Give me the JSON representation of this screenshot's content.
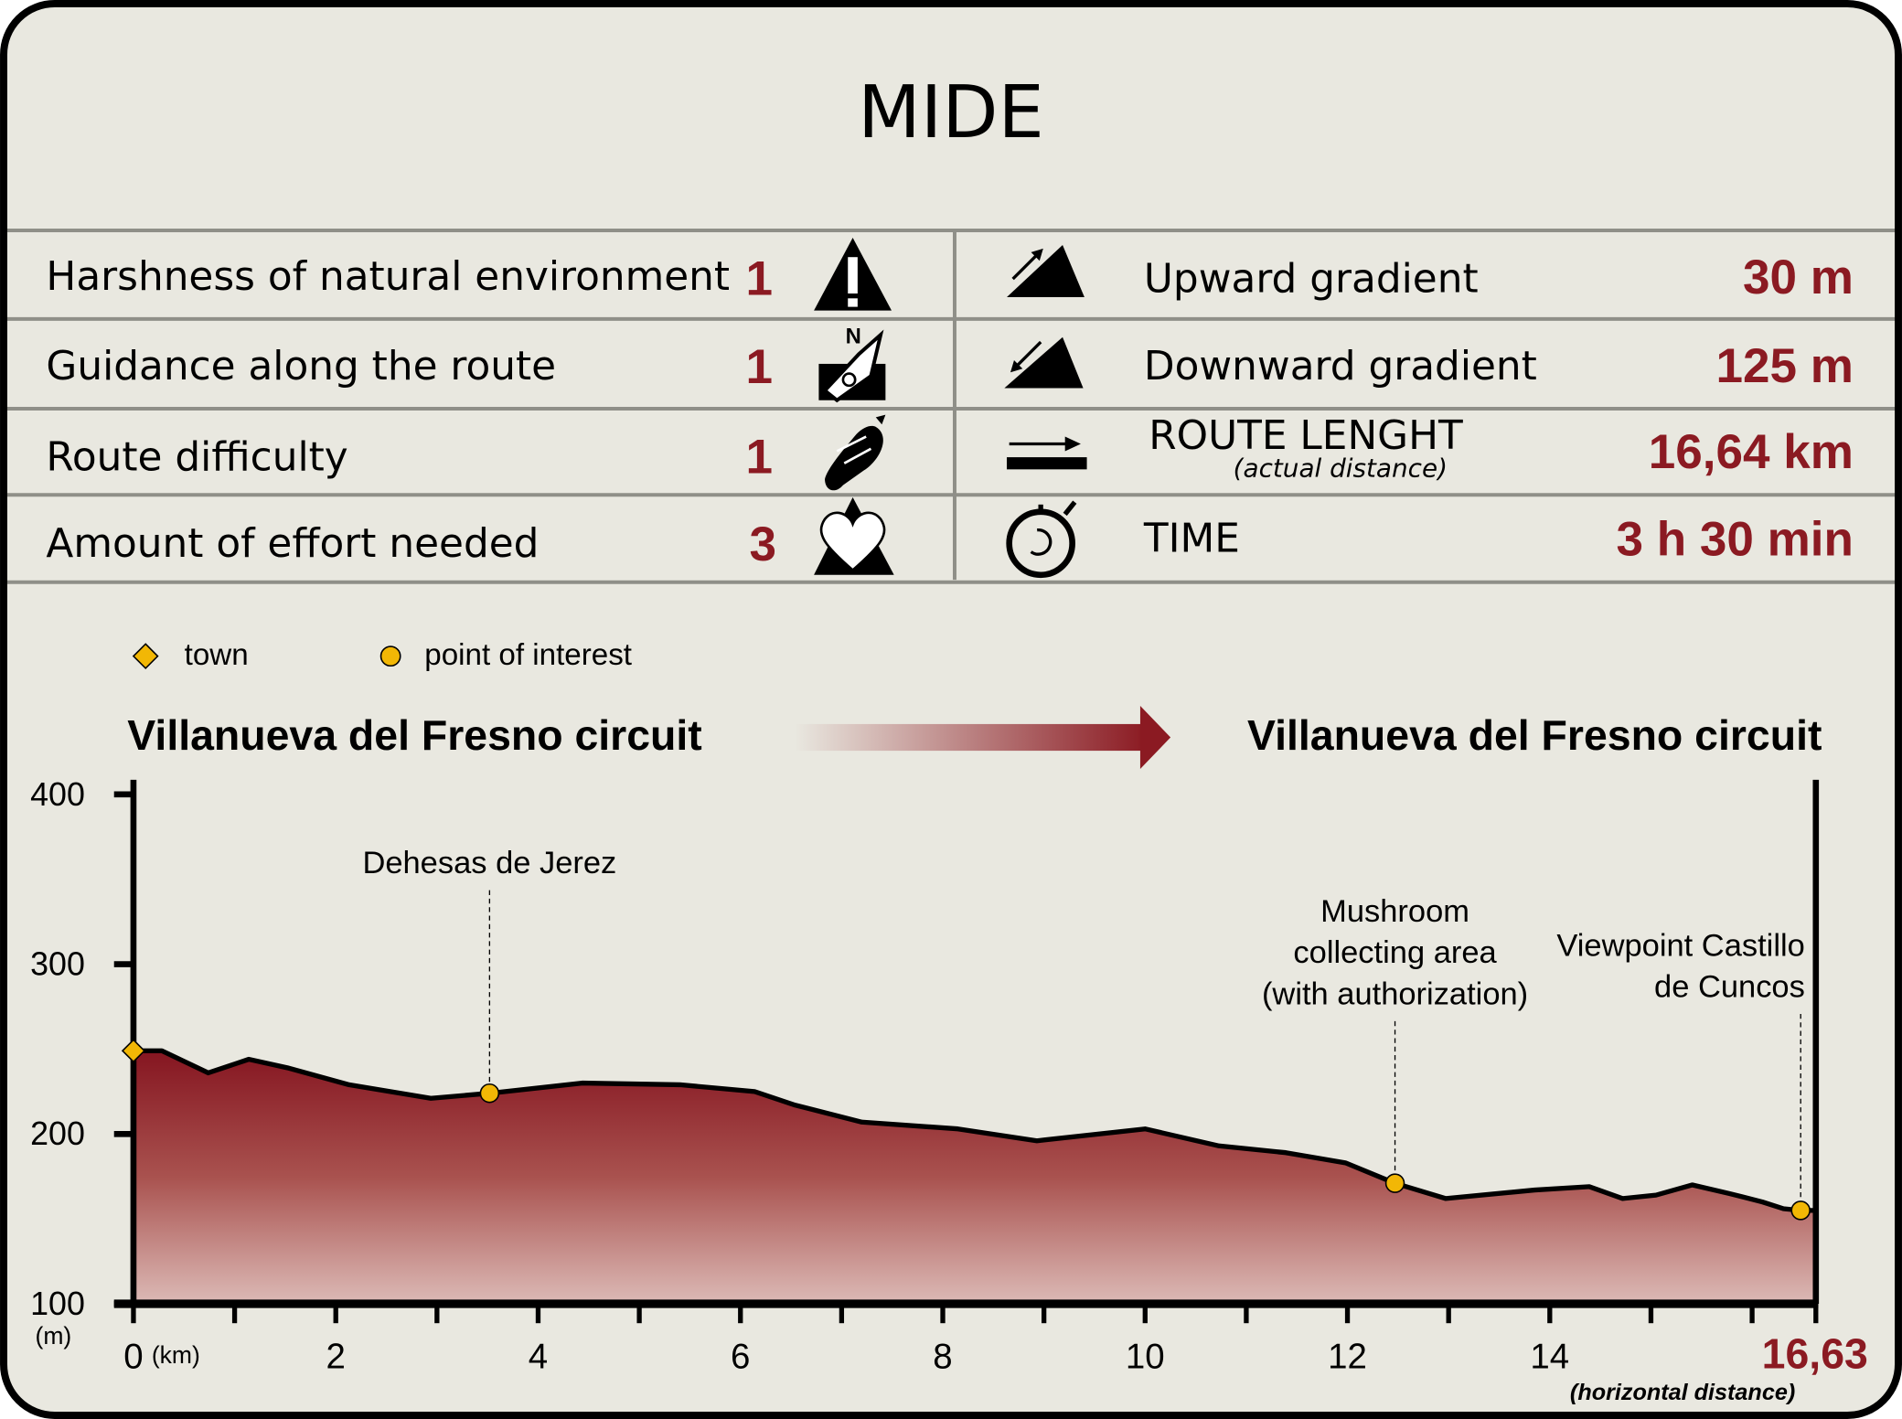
{
  "title": "MIDE",
  "mide_rows": [
    {
      "label": "Harshness of natural environment",
      "value": "1",
      "icon": "warning-mountain-icon"
    },
    {
      "label": "Guidance along the route",
      "value": "1",
      "icon": "compass-map-icon"
    },
    {
      "label": "Route difficulty",
      "value": "1",
      "icon": "footprint-icon"
    },
    {
      "label": "Amount of effort needed",
      "value": "3",
      "icon": "heart-mountain-icon"
    }
  ],
  "stats_rows": [
    {
      "label": "Upward gradient",
      "value": "30 m",
      "icon": "upward-gradient-icon"
    },
    {
      "label": "Downward gradient",
      "value": "125 m",
      "icon": "downward-gradient-icon"
    },
    {
      "label": "ROUTE LENGHT",
      "sublabel": "(actual distance)",
      "value": "16,64 km",
      "icon": "distance-arrow-icon"
    },
    {
      "label": "TIME",
      "value": "3 h 30 min",
      "icon": "stopwatch-icon"
    }
  ],
  "legend": [
    {
      "label": "town",
      "marker": "diamond"
    },
    {
      "label": "point of interest",
      "marker": "circle"
    }
  ],
  "route": {
    "start": "Villanueva del Fresno circuit",
    "end": "Villanueva del Fresno circuit"
  },
  "colors": {
    "accent": "#8b1a22",
    "marker": "#f2b705",
    "background": "#e9e8e0",
    "divider": "#8f8f88"
  },
  "chart_data": {
    "type": "area",
    "xlabel": "(km)",
    "ylabel": "(m)",
    "x_end_label": "16,63",
    "x_end_caption": "(horizontal distance)",
    "xlim": [
      0,
      16.63
    ],
    "ylim": [
      100,
      400
    ],
    "xticks": [
      "0",
      "2",
      "4",
      "6",
      "8",
      "10",
      "12",
      "14"
    ],
    "yticks": [
      "100",
      "200",
      "300",
      "400"
    ],
    "grid": false,
    "x": [
      0,
      0.28,
      0.74,
      1.14,
      1.52,
      2.13,
      2.94,
      3.52,
      4.44,
      5.4,
      6.14,
      6.54,
      7.2,
      8.15,
      8.93,
      10.0,
      10.73,
      11.39,
      11.98,
      12.47,
      12.97,
      13.85,
      14.39,
      14.72,
      15.05,
      15.41,
      15.77,
      16.1,
      16.31,
      16.48,
      16.63
    ],
    "y": [
      249,
      249,
      236,
      244,
      239,
      229,
      221,
      224,
      230,
      229,
      225,
      217,
      207,
      203,
      196,
      203,
      193,
      189,
      183,
      171,
      162,
      167,
      169,
      162,
      164,
      170,
      165,
      160,
      156,
      155,
      155
    ],
    "points": [
      {
        "name": "",
        "type": "town",
        "x": 0,
        "y": 249
      },
      {
        "name": "Dehesas de Jerez",
        "type": "poi",
        "x": 3.52,
        "y": 224
      },
      {
        "name": "Mushroom|collecting area|(with authorization)",
        "type": "poi",
        "x": 12.47,
        "y": 171
      },
      {
        "name": "Viewpoint Castillo|de Cuncos",
        "type": "poi",
        "x": 16.48,
        "y": 155
      }
    ]
  }
}
